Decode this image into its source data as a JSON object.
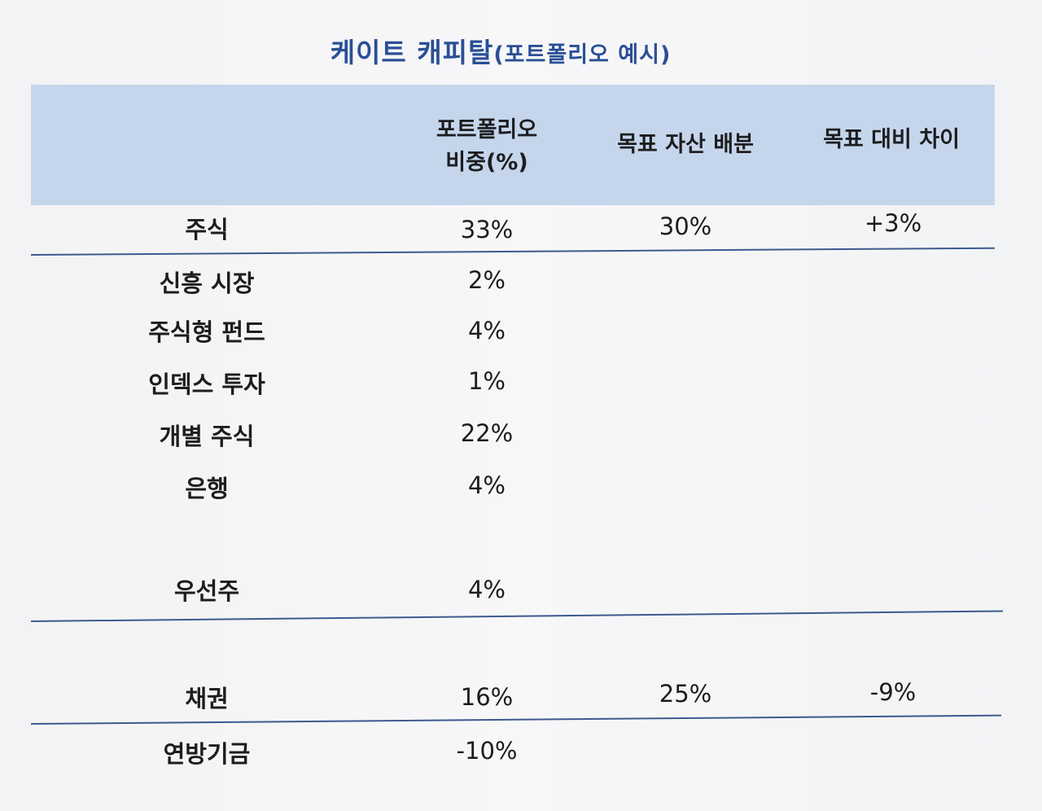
{
  "title": {
    "main": "케이트 캐피탈",
    "sub": "(포트폴리오 예시)"
  },
  "table": {
    "headers": {
      "portfolio_weight_line1": "포트폴리오",
      "portfolio_weight_line2": "비중(%)",
      "target_allocation": "목표 자산 배분",
      "target_difference": "목표 대비 차이"
    },
    "rows": [
      {
        "label": "주식",
        "weight": "33%",
        "target": "30%",
        "diff": "+3%"
      },
      {
        "label": "신흥 시장",
        "weight": "2%",
        "target": "",
        "diff": ""
      },
      {
        "label": "주식형 펀드",
        "weight": "4%",
        "target": "",
        "diff": ""
      },
      {
        "label": "인덱스 투자",
        "weight": "1%",
        "target": "",
        "diff": ""
      },
      {
        "label": "개별 주식",
        "weight": "22%",
        "target": "",
        "diff": ""
      },
      {
        "label": "은행",
        "weight": "4%",
        "target": "",
        "diff": ""
      },
      {
        "label": "우선주",
        "weight": "4%",
        "target": "",
        "diff": ""
      },
      {
        "label": "채권",
        "weight": "16%",
        "target": "25%",
        "diff": "-9%"
      },
      {
        "label": "연방기금",
        "weight": "-10%",
        "target": "",
        "diff": ""
      }
    ]
  },
  "colors": {
    "title": "#2a4f95",
    "header_band": "#c5d6ec",
    "rule": "#3d5a8f"
  }
}
